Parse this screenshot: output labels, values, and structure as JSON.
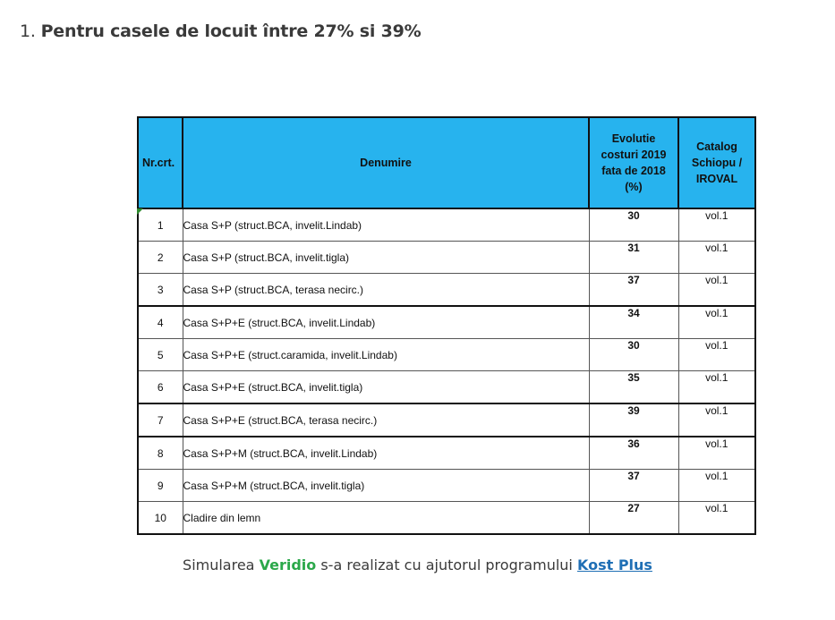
{
  "heading": {
    "number": "1.",
    "text": "Pentru casele de locuit între 27% si 39%"
  },
  "table": {
    "headers": {
      "nr": "Nr.crt.",
      "denumire": "Denumire",
      "evolutie": [
        "Evolutie",
        "costuri 2019",
        "fata de 2018",
        "(%)"
      ],
      "catalog": [
        "Catalog",
        "Schiopu /",
        "IROVAL"
      ]
    },
    "rows": [
      {
        "nr": "1",
        "denumire": "Casa S+P (struct.BCA, invelit.Lindab)",
        "evolutie": "30",
        "catalog": "vol.1"
      },
      {
        "nr": "2",
        "denumire": "Casa S+P (struct.BCA, invelit.tigla)",
        "evolutie": "31",
        "catalog": "vol.1"
      },
      {
        "nr": "3",
        "denumire": "Casa S+P (struct.BCA, terasa necirc.)",
        "evolutie": "37",
        "catalog": "vol.1"
      },
      {
        "nr": "4",
        "denumire": "Casa S+P+E (struct.BCA, invelit.Lindab)",
        "evolutie": "34",
        "catalog": "vol.1"
      },
      {
        "nr": "5",
        "denumire": "Casa S+P+E (struct.caramida, invelit.Lindab)",
        "evolutie": "30",
        "catalog": "vol.1"
      },
      {
        "nr": "6",
        "denumire": "Casa S+P+E (struct.BCA, invelit.tigla)",
        "evolutie": "35",
        "catalog": "vol.1"
      },
      {
        "nr": "7",
        "denumire": "Casa S+P+E (struct.BCA, terasa necirc.)",
        "evolutie": "39",
        "catalog": "vol.1"
      },
      {
        "nr": "8",
        "denumire": "Casa S+P+M (struct.BCA, invelit.Lindab)",
        "evolutie": "36",
        "catalog": "vol.1"
      },
      {
        "nr": "9",
        "denumire": "Casa S+P+M (struct.BCA, invelit.tigla)",
        "evolutie": "37",
        "catalog": "vol.1"
      },
      {
        "nr": "10",
        "denumire": "Cladire din lemn",
        "evolutie": "27",
        "catalog": "vol.1"
      }
    ]
  },
  "footer": {
    "prefix": "Simularea",
    "brand": "Veridio",
    "middle": "s-a realizat cu ajutorul programului",
    "link": "Kost Plus"
  },
  "colors": {
    "header_bg": "#27b3ee",
    "brand": "#2ba84a",
    "link": "#1f6fb5"
  }
}
